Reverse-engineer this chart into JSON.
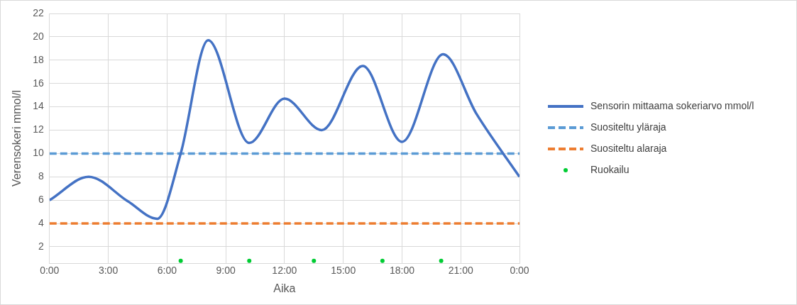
{
  "chart_data": {
    "type": "line",
    "xlabel": "Aika",
    "ylabel": "Verensokeri mmol/l",
    "xlim": [
      0,
      24
    ],
    "xticks": [
      {
        "value": 0,
        "label": "0:00"
      },
      {
        "value": 3,
        "label": "3:00"
      },
      {
        "value": 6,
        "label": "6:00"
      },
      {
        "value": 9,
        "label": "9:00"
      },
      {
        "value": 12,
        "label": "12:00"
      },
      {
        "value": 15,
        "label": "15:00"
      },
      {
        "value": 18,
        "label": "18:00"
      },
      {
        "value": 21,
        "label": "21:00"
      },
      {
        "value": 24,
        "label": "0:00"
      }
    ],
    "ylim": [
      0.6,
      22
    ],
    "yticks": [
      2,
      4,
      6,
      8,
      10,
      12,
      14,
      16,
      18,
      20,
      22
    ],
    "grid": true,
    "legend": "right",
    "series": [
      {
        "name": "Sensorin mittaama sokeriarvo mmol/l",
        "type": "line",
        "color": "#4472c4",
        "line_style": "solid",
        "marker": "none",
        "x": [
          0,
          2,
          4,
          5.5,
          6.7,
          8.1,
          10.2,
          12,
          13.9,
          16,
          18,
          20.1,
          21.8,
          24
        ],
        "values": [
          6,
          8,
          5.9,
          4.4,
          10,
          19.7,
          10.9,
          14.7,
          12,
          17.5,
          11,
          18.5,
          13.4,
          8
        ]
      },
      {
        "name": "Suositeltu yläraja",
        "type": "line",
        "color": "#5b9bd5",
        "line_style": "dashed",
        "marker": "none",
        "x": [
          0,
          24
        ],
        "values": [
          10,
          10
        ]
      },
      {
        "name": "Suositeltu alaraja",
        "type": "line",
        "color": "#ed7d31",
        "line_style": "dashed",
        "marker": "none",
        "x": [
          0,
          24
        ],
        "values": [
          4,
          4
        ]
      },
      {
        "name": "Ruokailu",
        "type": "scatter",
        "color": "#00cc33",
        "marker": "circle",
        "x": [
          6.7,
          10.2,
          13.5,
          17,
          20
        ],
        "values": [
          0.8,
          0.8,
          0.8,
          0.8,
          0.8
        ]
      }
    ]
  }
}
